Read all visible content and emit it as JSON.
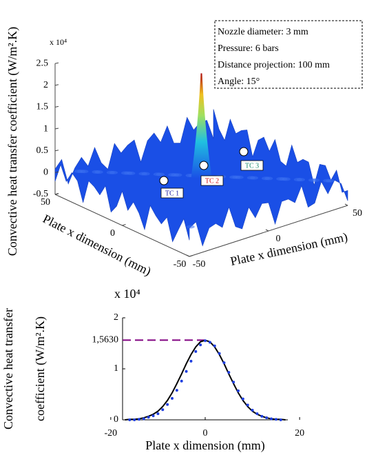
{
  "chart_data": [
    {
      "type": "surface3d",
      "zlabel": "Convective heat transfer coefficient (W/m².K)",
      "xlabel": "Plate x dimension (mm)",
      "ylabel": "Plate x dimension (mm)",
      "exponent_label": "x 10⁴",
      "xlim": [
        -50,
        50
      ],
      "xticks": [
        -50,
        0,
        50
      ],
      "ylim": [
        -50,
        50
      ],
      "yticks": [
        50,
        0,
        -50
      ],
      "zlim": [
        -0.5,
        2.5
      ],
      "zticks": [
        -0.5,
        0,
        0.5,
        1,
        1.5,
        2,
        2.5
      ],
      "peak": 2.4,
      "color": "#1a4fe6",
      "annotation": [
        "Nozzle diameter: 3 mm",
        "Pressure: 6 bars",
        "Distance projection: 100 mm",
        "Angle: 15°"
      ],
      "sensors": [
        {
          "label": "TC 1",
          "color": "#1a1aa0"
        },
        {
          "label": "TC 2",
          "color": "#d01010"
        },
        {
          "label": "TC 3",
          "color": "#1a8a6a"
        }
      ]
    },
    {
      "type": "line",
      "ylabel": [
        "Convective heat transfer",
        "coefficient (W/m².K)"
      ],
      "xlabel": "Plate x dimension (mm)",
      "exponent_label": "x 10⁴",
      "xlim": [
        -17.5,
        17.5
      ],
      "xticks": [
        -20,
        0,
        20
      ],
      "ylim": [
        0,
        2
      ],
      "yticks": [
        0,
        1,
        2,
        {
          "value": 1.563,
          "label": "1,5630"
        }
      ],
      "peak_line_color": "#800080",
      "series": [
        {
          "color": "#000000",
          "style": "line",
          "x": [
            -17,
            -16,
            -15,
            -14,
            -13,
            -12,
            -11,
            -10,
            -9,
            -8,
            -7,
            -6,
            -5,
            -4,
            -3,
            -2,
            -1,
            0,
            1,
            2,
            3,
            4,
            5,
            6,
            7,
            8,
            9,
            10,
            11,
            12,
            13,
            14,
            15,
            16,
            17
          ],
          "values": [
            0,
            0.01,
            0.01,
            0.02,
            0.04,
            0.07,
            0.11,
            0.17,
            0.26,
            0.38,
            0.53,
            0.71,
            0.9,
            1.1,
            1.28,
            1.43,
            1.53,
            1.56,
            1.53,
            1.43,
            1.28,
            1.1,
            0.9,
            0.71,
            0.53,
            0.38,
            0.26,
            0.17,
            0.11,
            0.07,
            0.04,
            0.02,
            0.01,
            0.01,
            0
          ]
        },
        {
          "color": "#1f3fe0",
          "style": "dots",
          "x": [
            -16,
            -15,
            -14,
            -13,
            -12,
            -11,
            -10,
            -9,
            -8,
            -7,
            -6,
            -5,
            -4,
            -3,
            -2,
            -1,
            0,
            1,
            2,
            3,
            4,
            5,
            6,
            7,
            8,
            9,
            10,
            11,
            12,
            13,
            14,
            15,
            16
          ],
          "values": [
            0,
            0,
            0.01,
            0.02,
            0.05,
            0.08,
            0.12,
            0.2,
            0.3,
            0.42,
            0.58,
            0.76,
            0.95,
            1.15,
            1.34,
            1.47,
            1.55,
            1.52,
            1.45,
            1.3,
            1.12,
            0.93,
            0.74,
            0.57,
            0.41,
            0.29,
            0.19,
            0.12,
            0.07,
            0.04,
            0.02,
            0.01,
            0
          ]
        }
      ]
    }
  ]
}
